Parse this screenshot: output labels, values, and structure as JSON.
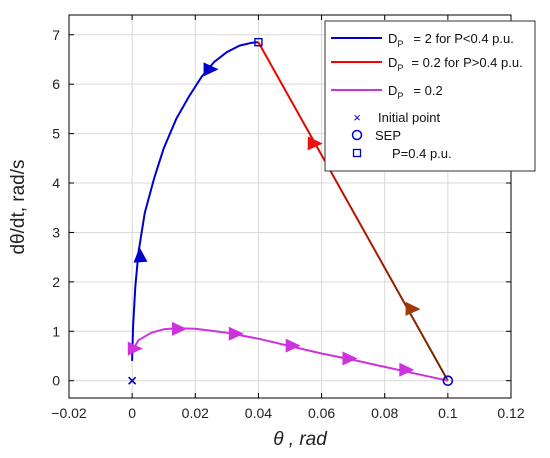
{
  "chart_data": {
    "type": "line",
    "xlabel": "θ , rad",
    "ylabel": "dθ/dt, rad/s",
    "xlim": [
      -0.02,
      0.12
    ],
    "ylim": [
      -0.35,
      7.4
    ],
    "xticks": [
      -0.02,
      0,
      0.02,
      0.04,
      0.06,
      0.08,
      0.1,
      0.12
    ],
    "xtick_labels": [
      "−0.02",
      "0",
      "0.02",
      "0.04",
      "0.06",
      "0.08",
      "0.1",
      "0.12"
    ],
    "yticks": [
      0,
      1,
      2,
      3,
      4,
      5,
      6,
      7
    ],
    "ytick_labels": [
      "0",
      "1",
      "2",
      "3",
      "4",
      "5",
      "6",
      "7"
    ],
    "grid": true,
    "legend_position": "top-right",
    "series": [
      {
        "name": "D_P = 2 for P<0.4 p.u.",
        "legend_main": "D",
        "legend_sub": "P",
        "legend_rest": "= 2 for P<0.4 p.u.",
        "color": "#0000cc",
        "x": [
          0,
          0.0003,
          0.001,
          0.002,
          0.004,
          0.007,
          0.01,
          0.014,
          0.018,
          0.022,
          0.026,
          0.03,
          0.034,
          0.038,
          0.04
        ],
        "y": [
          0.4,
          1.1,
          1.9,
          2.6,
          3.4,
          4.1,
          4.7,
          5.3,
          5.75,
          6.15,
          6.45,
          6.65,
          6.78,
          6.84,
          6.85
        ]
      },
      {
        "name": "D_P = 0.2 for P>0.4 p.u.",
        "legend_main": "D",
        "legend_sub": "P",
        "legend_rest": "= 0.2 for P>0.4 p.u.",
        "color_start": "#ff0000",
        "color_end": "#6b2a00",
        "x": [
          0.04,
          0.1
        ],
        "y": [
          6.85,
          0
        ]
      },
      {
        "name": "D_P = 0.2",
        "legend_main": "D",
        "legend_sub": "P",
        "legend_rest": "= 0.2",
        "color": "#cc33dd",
        "x": [
          0,
          0.002,
          0.006,
          0.01,
          0.014,
          0.02,
          0.03,
          0.04,
          0.05,
          0.06,
          0.07,
          0.08,
          0.09,
          0.1
        ],
        "y": [
          0.6,
          0.82,
          0.97,
          1.04,
          1.06,
          1.05,
          0.97,
          0.85,
          0.7,
          0.55,
          0.42,
          0.28,
          0.14,
          0
        ]
      }
    ],
    "markers": [
      {
        "name": "Initial point",
        "symbol": "x",
        "color": "#0000cc",
        "x": 0,
        "y": 0
      },
      {
        "name": "SEP",
        "symbol": "o",
        "color": "#0000cc",
        "x": 0.1,
        "y": 0
      },
      {
        "name": "P=0.4 p.u.",
        "symbol": "s",
        "color": "#0000cc",
        "x": 0.04,
        "y": 6.85
      }
    ],
    "arrows": [
      {
        "series": 0,
        "x": 0.0025,
        "y": 2.55,
        "dx": -0.001,
        "dy": 1
      },
      {
        "series": 0,
        "x": 0.025,
        "y": 6.3,
        "dx": 1,
        "dy": 0.6
      },
      {
        "series": 1,
        "x": 0.058,
        "y": 4.8,
        "dx": 1,
        "dy": -1
      },
      {
        "series": 1,
        "x": 0.089,
        "y": 1.45,
        "dx": 1,
        "dy": -1
      },
      {
        "series": 2,
        "x": 0.001,
        "y": 0.65,
        "dx": 1,
        "dy": 0.4
      },
      {
        "series": 2,
        "x": 0.015,
        "y": 1.05,
        "dx": 1,
        "dy": 0
      },
      {
        "series": 2,
        "x": 0.033,
        "y": 0.95,
        "dx": 1,
        "dy": -0.15
      },
      {
        "series": 2,
        "x": 0.051,
        "y": 0.71,
        "dx": 1,
        "dy": -0.2
      },
      {
        "series": 2,
        "x": 0.069,
        "y": 0.45,
        "dx": 1,
        "dy": -0.2
      },
      {
        "series": 2,
        "x": 0.087,
        "y": 0.22,
        "dx": 1,
        "dy": -0.25
      }
    ]
  }
}
